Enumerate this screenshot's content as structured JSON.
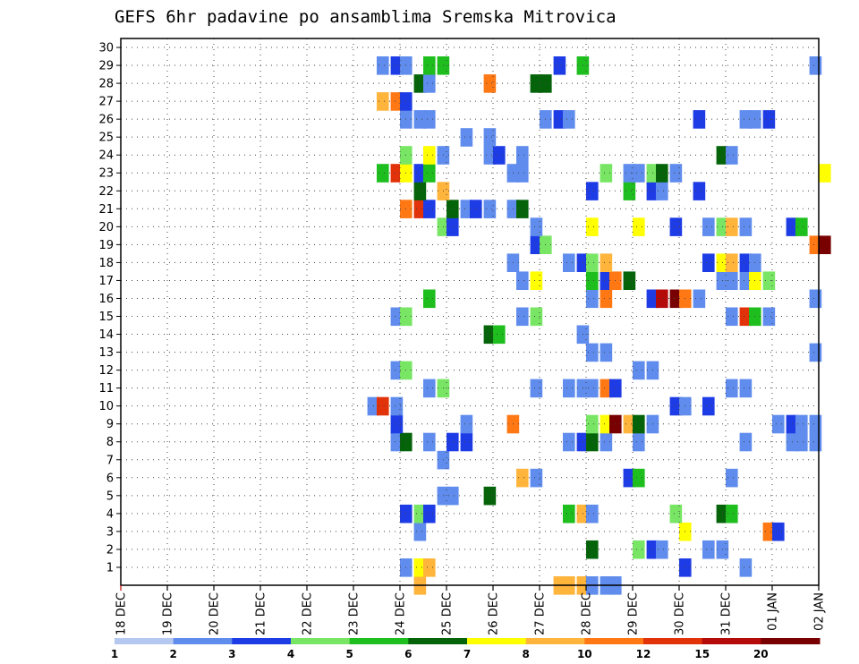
{
  "chart_data": {
    "type": "heatmap",
    "title": "GEFS 6hr padavine po ansamblima Sremska Mitrovica",
    "x_tick_labels": [
      "18 DEC",
      "19 DEC",
      "20 DEC",
      "21 DEC",
      "22 DEC",
      "23 DEC",
      "24 DEC",
      "25 DEC",
      "26 DEC",
      "27 DEC",
      "28 DEC",
      "29 DEC",
      "30 DEC",
      "31 DEC",
      "01 JAN",
      "02 JAN"
    ],
    "x_tick_step_hours": 6,
    "y_tick_labels": [
      "1",
      "2",
      "3",
      "4",
      "5",
      "6",
      "7",
      "8",
      "9",
      "10",
      "11",
      "12",
      "13",
      "14",
      "15",
      "16",
      "17",
      "18",
      "19",
      "20",
      "21",
      "22",
      "23",
      "24",
      "25",
      "26",
      "27",
      "28",
      "29",
      "30"
    ],
    "y_range": [
      0,
      30
    ],
    "grid": true,
    "legend_placement": "bottom",
    "legend": {
      "tick_labels": [
        "1",
        "2",
        "3",
        "4",
        "5",
        "6",
        "7",
        "8",
        "10",
        "12",
        "15",
        "20"
      ],
      "colors": [
        "#b4c8f0",
        "#5f8ced",
        "#1e3ce6",
        "#78e664",
        "#1ebe1e",
        "#05640a",
        "#ffff00",
        "#ffb43c",
        "#ff7814",
        "#e1320a",
        "#b40a0a",
        "#780000"
      ]
    },
    "cells": [
      [
        0,
        24.3,
        7
      ],
      [
        0,
        27.3,
        7
      ],
      [
        0,
        27.5,
        7
      ],
      [
        0,
        27.8,
        7
      ],
      [
        0,
        28,
        1
      ],
      [
        0,
        28.3,
        1
      ],
      [
        0,
        28.5,
        1
      ],
      [
        1,
        24,
        1
      ],
      [
        1,
        24.3,
        6
      ],
      [
        1,
        24.5,
        7
      ],
      [
        1,
        31.3,
        1
      ],
      [
        1,
        30,
        2
      ],
      [
        2,
        28,
        5
      ],
      [
        2,
        29,
        3
      ],
      [
        2,
        29.3,
        2
      ],
      [
        2,
        29.5,
        1
      ],
      [
        2,
        30.5,
        1
      ],
      [
        2,
        30.8,
        1
      ],
      [
        3,
        24.3,
        1
      ],
      [
        3,
        30,
        6
      ],
      [
        3,
        31.8,
        8
      ],
      [
        3,
        32,
        2
      ],
      [
        4,
        24,
        2
      ],
      [
        4,
        24.3,
        3
      ],
      [
        4,
        24.5,
        2
      ],
      [
        4,
        27.5,
        4
      ],
      [
        4,
        27.8,
        7
      ],
      [
        4,
        28,
        1
      ],
      [
        4,
        29.8,
        3
      ],
      [
        4,
        30.8,
        5
      ],
      [
        4,
        31,
        4
      ],
      [
        5,
        24.8,
        1
      ],
      [
        5,
        25,
        1
      ],
      [
        5,
        25.8,
        5
      ],
      [
        6,
        26.5,
        7
      ],
      [
        6,
        26.8,
        1
      ],
      [
        6,
        28.8,
        2
      ],
      [
        6,
        29,
        4
      ],
      [
        6,
        31,
        1
      ],
      [
        7,
        24.8,
        1
      ],
      [
        8,
        23.8,
        1
      ],
      [
        8,
        24,
        5
      ],
      [
        8,
        24.5,
        1
      ],
      [
        8,
        25,
        2
      ],
      [
        8,
        25.3,
        2
      ],
      [
        8,
        27.5,
        1
      ],
      [
        8,
        27.8,
        2
      ],
      [
        8,
        28,
        5
      ],
      [
        8,
        28.3,
        1
      ],
      [
        8,
        29,
        1
      ],
      [
        8,
        31.3,
        1
      ],
      [
        8,
        32.3,
        1
      ],
      [
        8,
        32.5,
        1
      ],
      [
        8,
        32.8,
        1
      ],
      [
        9,
        23.8,
        2
      ],
      [
        9,
        25.3,
        1
      ],
      [
        9,
        26.3,
        8
      ],
      [
        9,
        28,
        3
      ],
      [
        9,
        28.3,
        6
      ],
      [
        9,
        28.5,
        11
      ],
      [
        9,
        28.8,
        7
      ],
      [
        9,
        29,
        5
      ],
      [
        9,
        29.3,
        1
      ],
      [
        9,
        32,
        1
      ],
      [
        9,
        32.3,
        2
      ],
      [
        9,
        32.5,
        1
      ],
      [
        9,
        32.8,
        1
      ],
      [
        10,
        23.3,
        1
      ],
      [
        10,
        23.5,
        9
      ],
      [
        10,
        23.8,
        1
      ],
      [
        10,
        29.8,
        2
      ],
      [
        10,
        30,
        1
      ],
      [
        10,
        30.5,
        2
      ],
      [
        11,
        24.5,
        1
      ],
      [
        11,
        24.8,
        3
      ],
      [
        11,
        26.8,
        1
      ],
      [
        11,
        27.5,
        1
      ],
      [
        11,
        27.8,
        1
      ],
      [
        11,
        28,
        1
      ],
      [
        11,
        28.3,
        8
      ],
      [
        11,
        28.5,
        2
      ],
      [
        11,
        31,
        1
      ],
      [
        11,
        31.3,
        1
      ],
      [
        12,
        23.8,
        1
      ],
      [
        12,
        24,
        3
      ],
      [
        12,
        29,
        1
      ],
      [
        12,
        29.3,
        1
      ],
      [
        13,
        28,
        1
      ],
      [
        13,
        28.3,
        1
      ],
      [
        13,
        32.8,
        1
      ],
      [
        14,
        25.8,
        5
      ],
      [
        14,
        26,
        4
      ],
      [
        14,
        27.8,
        1
      ],
      [
        15,
        23.8,
        1
      ],
      [
        15,
        24,
        3
      ],
      [
        15,
        26.5,
        1
      ],
      [
        15,
        26.8,
        3
      ],
      [
        15,
        31,
        1
      ],
      [
        15,
        31.3,
        9
      ],
      [
        15,
        31.5,
        4
      ],
      [
        15,
        31.8,
        1
      ],
      [
        16,
        24.5,
        4
      ],
      [
        16,
        28,
        1
      ],
      [
        16,
        28.3,
        8
      ],
      [
        16,
        29.3,
        2
      ],
      [
        16,
        29.5,
        10
      ],
      [
        16,
        29.8,
        11
      ],
      [
        16,
        30,
        8
      ],
      [
        16,
        30.3,
        1
      ],
      [
        16,
        32.8,
        1
      ],
      [
        17,
        26.5,
        1
      ],
      [
        17,
        26.8,
        6
      ],
      [
        17,
        28,
        4
      ],
      [
        17,
        28.3,
        2
      ],
      [
        17,
        28.5,
        8
      ],
      [
        17,
        28.8,
        5
      ],
      [
        17,
        30.8,
        1
      ],
      [
        17,
        31,
        1
      ],
      [
        17,
        31.3,
        1
      ],
      [
        17,
        31.5,
        6
      ],
      [
        17,
        31.8,
        3
      ],
      [
        18,
        26.3,
        1
      ],
      [
        18,
        27.5,
        1
      ],
      [
        18,
        27.8,
        2
      ],
      [
        18,
        28,
        3
      ],
      [
        18,
        28.3,
        7
      ],
      [
        18,
        30.5,
        2
      ],
      [
        18,
        30.8,
        6
      ],
      [
        18,
        31,
        7
      ],
      [
        18,
        31.3,
        2
      ],
      [
        18,
        31.5,
        1
      ],
      [
        19,
        26.8,
        2
      ],
      [
        19,
        27,
        3
      ],
      [
        19,
        32.8,
        8
      ],
      [
        19,
        33,
        11
      ],
      [
        20,
        24.8,
        3
      ],
      [
        20,
        25,
        2
      ],
      [
        20,
        26.8,
        1
      ],
      [
        20,
        28,
        6
      ],
      [
        20,
        29,
        6
      ],
      [
        20,
        29.8,
        2
      ],
      [
        20,
        30.5,
        1
      ],
      [
        20,
        30.8,
        3
      ],
      [
        20,
        31,
        7
      ],
      [
        20,
        31.3,
        1
      ],
      [
        20,
        32.3,
        2
      ],
      [
        20,
        32.5,
        4
      ],
      [
        21,
        24,
        8
      ],
      [
        21,
        24.3,
        9
      ],
      [
        21,
        24.5,
        2
      ],
      [
        21,
        25,
        5
      ],
      [
        21,
        25.3,
        1
      ],
      [
        21,
        25.5,
        2
      ],
      [
        21,
        25.8,
        1
      ],
      [
        21,
        26.3,
        1
      ],
      [
        21,
        26.5,
        5
      ],
      [
        22,
        24.3,
        5
      ],
      [
        22,
        24.8,
        7
      ],
      [
        22,
        28,
        2
      ],
      [
        22,
        28.8,
        4
      ],
      [
        22,
        29.3,
        2
      ],
      [
        22,
        29.5,
        1
      ],
      [
        22,
        30.3,
        2
      ],
      [
        23,
        23.5,
        4
      ],
      [
        23,
        23.8,
        9
      ],
      [
        23,
        24,
        6
      ],
      [
        23,
        24.3,
        2
      ],
      [
        23,
        24.5,
        4
      ],
      [
        23,
        26.3,
        1
      ],
      [
        23,
        26.5,
        1
      ],
      [
        23,
        28.3,
        3
      ],
      [
        23,
        28.8,
        1
      ],
      [
        23,
        29,
        1
      ],
      [
        23,
        29.3,
        3
      ],
      [
        23,
        29.5,
        5
      ],
      [
        23,
        29.8,
        1
      ],
      [
        23,
        33,
        6
      ],
      [
        24,
        24,
        3
      ],
      [
        24,
        24.5,
        6
      ],
      [
        24,
        24.8,
        1
      ],
      [
        24,
        25.8,
        1
      ],
      [
        24,
        26,
        2
      ],
      [
        24,
        26.5,
        1
      ],
      [
        24,
        30.8,
        5
      ],
      [
        24,
        31,
        1
      ],
      [
        25,
        25.3,
        1
      ],
      [
        25,
        25.8,
        1
      ],
      [
        26,
        24,
        1
      ],
      [
        26,
        24.3,
        1
      ],
      [
        26,
        24.5,
        1
      ],
      [
        26,
        27,
        1
      ],
      [
        26,
        27.3,
        2
      ],
      [
        26,
        27.5,
        1
      ],
      [
        26,
        30.3,
        2
      ],
      [
        26,
        31.3,
        1
      ],
      [
        26,
        31.5,
        1
      ],
      [
        26,
        31.8,
        2
      ],
      [
        27,
        23.5,
        7
      ],
      [
        27,
        23.8,
        8
      ],
      [
        27,
        24,
        2
      ],
      [
        28,
        24.3,
        5
      ],
      [
        28,
        24.5,
        1
      ],
      [
        28,
        25.8,
        8
      ],
      [
        28,
        26.8,
        5
      ],
      [
        28,
        27,
        5
      ],
      [
        29,
        23.5,
        1
      ],
      [
        29,
        23.8,
        2
      ],
      [
        29,
        24,
        1
      ],
      [
        29,
        24.5,
        4
      ],
      [
        29,
        24.8,
        4
      ],
      [
        29,
        27.3,
        2
      ],
      [
        29,
        27.8,
        4
      ],
      [
        29,
        32.8,
        1
      ]
    ]
  }
}
